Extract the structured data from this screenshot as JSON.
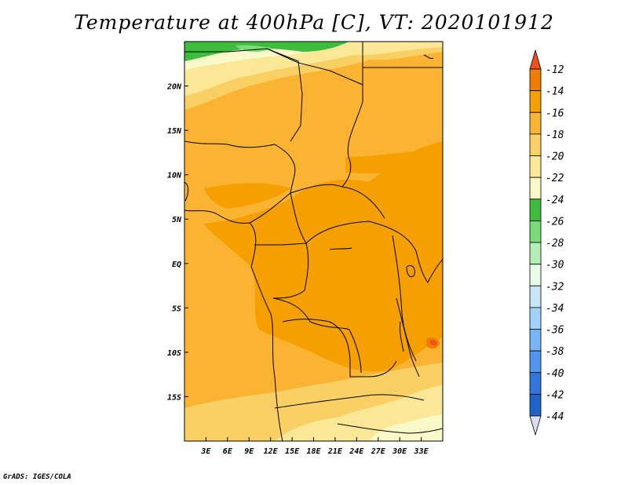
{
  "title": "Temperature at 400hPa [C], VT: 2020101912",
  "footer": "GrADS: IGES/COLA",
  "map": {
    "lon_range": [
      0,
      36
    ],
    "lat_range": [
      -20,
      25
    ],
    "x_ticks": [
      "3E",
      "6E",
      "9E",
      "12E",
      "15E",
      "18E",
      "21E",
      "24E",
      "27E",
      "30E",
      "33E"
    ],
    "x_tick_values": [
      3,
      6,
      9,
      12,
      15,
      18,
      21,
      24,
      27,
      30,
      33
    ],
    "y_ticks": [
      "20N",
      "15N",
      "10N",
      "5N",
      "EQ",
      "5S",
      "10S",
      "15S"
    ],
    "y_tick_values": [
      20,
      15,
      10,
      5,
      0,
      -5,
      -10,
      -15
    ]
  },
  "colorbar": {
    "labels": [
      "-12",
      "-14",
      "-16",
      "-18",
      "-20",
      "-22",
      "-24",
      "-26",
      "-28",
      "-30",
      "-32",
      "-34",
      "-36",
      "-38",
      "-40",
      "-42",
      "-44"
    ],
    "colors": [
      "#f0501e",
      "#f07d00",
      "#f5a000",
      "#fab432",
      "#fad064",
      "#fae896",
      "#fafac8",
      "#3cbe3c",
      "#78dc78",
      "#b4f0b4",
      "#e6ffe6",
      "#c8e6fa",
      "#a0d2fa",
      "#78b4fa",
      "#5096f0",
      "#3278dc",
      "#1e64c8",
      "#1450aa",
      "#0a3282",
      "#dcdcf5"
    ]
  },
  "colors": {
    "orange_dark": "#f5a000",
    "orange_mid": "#fab432",
    "yellow": "#fad064",
    "pale": "#fae896",
    "green": "#3cbe3c",
    "red": "#f0501e"
  }
}
